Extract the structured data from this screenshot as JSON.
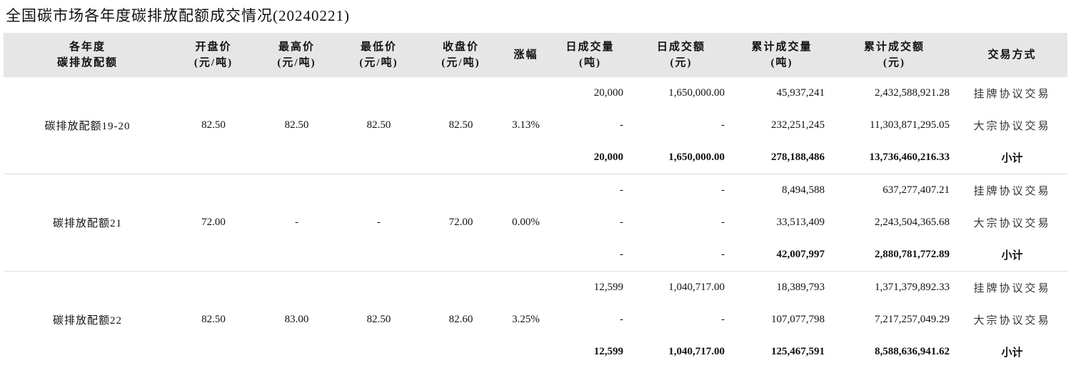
{
  "title": "全国碳市场各年度碳排放配额成交情况(20240221)",
  "headers": [
    [
      "各年度",
      "碳排放配额"
    ],
    [
      "开盘价",
      "(元/吨)"
    ],
    [
      "最高价",
      "(元/吨)"
    ],
    [
      "最低价",
      "(元/吨)"
    ],
    [
      "收盘价",
      "(元/吨)"
    ],
    [
      "涨幅",
      ""
    ],
    [
      "日成交量",
      "(吨)"
    ],
    [
      "日成交额",
      "(元)"
    ],
    [
      "累计成交量",
      "(吨)"
    ],
    [
      "累计成交额",
      "(元)"
    ],
    [
      "交易方式",
      ""
    ]
  ],
  "groups": [
    {
      "name": "碳排放配额19-20",
      "open": "82.50",
      "high": "82.50",
      "low": "82.50",
      "close": "82.50",
      "change": "3.13%",
      "rows": [
        {
          "daily_vol": "20,000",
          "daily_amt": "1,650,000.00",
          "cum_vol": "45,937,241",
          "cum_amt": "2,432,588,921.28",
          "method": "挂牌协议交易"
        },
        {
          "daily_vol": "-",
          "daily_amt": "-",
          "cum_vol": "232,251,245",
          "cum_amt": "11,303,871,295.05",
          "method": "大宗协议交易"
        },
        {
          "daily_vol": "20,000",
          "daily_amt": "1,650,000.00",
          "cum_vol": "278,188,486",
          "cum_amt": "13,736,460,216.33",
          "method": "小计"
        }
      ]
    },
    {
      "name": "碳排放配额21",
      "open": "72.00",
      "high": "-",
      "low": "-",
      "close": "72.00",
      "change": "0.00%",
      "rows": [
        {
          "daily_vol": "-",
          "daily_amt": "-",
          "cum_vol": "8,494,588",
          "cum_amt": "637,277,407.21",
          "method": "挂牌协议交易"
        },
        {
          "daily_vol": "-",
          "daily_amt": "-",
          "cum_vol": "33,513,409",
          "cum_amt": "2,243,504,365.68",
          "method": "大宗协议交易"
        },
        {
          "daily_vol": "-",
          "daily_amt": "-",
          "cum_vol": "42,007,997",
          "cum_amt": "2,880,781,772.89",
          "method": "小计"
        }
      ]
    },
    {
      "name": "碳排放配额22",
      "open": "82.50",
      "high": "83.00",
      "low": "82.50",
      "close": "82.60",
      "change": "3.25%",
      "rows": [
        {
          "daily_vol": "12,599",
          "daily_amt": "1,040,717.00",
          "cum_vol": "18,389,793",
          "cum_amt": "1,371,379,892.33",
          "method": "挂牌协议交易"
        },
        {
          "daily_vol": "-",
          "daily_amt": "-",
          "cum_vol": "107,077,798",
          "cum_amt": "7,217,257,049.29",
          "method": "大宗协议交易"
        },
        {
          "daily_vol": "12,599",
          "daily_amt": "1,040,717.00",
          "cum_vol": "125,467,591",
          "cum_amt": "8,588,636,941.62",
          "method": "小计"
        }
      ]
    }
  ]
}
